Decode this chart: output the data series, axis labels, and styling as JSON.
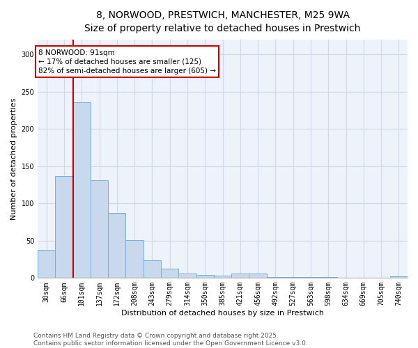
{
  "title_line1": "8, NORWOOD, PRESTWICH, MANCHESTER, M25 9WA",
  "title_line2": "Size of property relative to detached houses in Prestwich",
  "xlabel": "Distribution of detached houses by size in Prestwich",
  "ylabel": "Number of detached properties",
  "categories": [
    "30sqm",
    "66sqm",
    "101sqm",
    "137sqm",
    "172sqm",
    "208sqm",
    "243sqm",
    "279sqm",
    "314sqm",
    "350sqm",
    "385sqm",
    "421sqm",
    "456sqm",
    "492sqm",
    "527sqm",
    "563sqm",
    "598sqm",
    "634sqm",
    "669sqm",
    "705sqm",
    "740sqm"
  ],
  "values": [
    38,
    137,
    236,
    131,
    87,
    51,
    24,
    12,
    6,
    4,
    3,
    6,
    6,
    1,
    1,
    1,
    1,
    0,
    0,
    0,
    2
  ],
  "bar_color": "#c8d9ee",
  "bar_edge_color": "#7aadd4",
  "marker_line_color": "#cc0000",
  "annotation_text": "8 NORWOOD: 91sqm\n← 17% of detached houses are smaller (125)\n82% of semi-detached houses are larger (605) →",
  "annotation_box_color": "#cc0000",
  "ylim": [
    0,
    320
  ],
  "yticks": [
    0,
    50,
    100,
    150,
    200,
    250,
    300
  ],
  "grid_color": "#d0d8e8",
  "background_color": "#eef2fa",
  "footer_line1": "Contains HM Land Registry data © Crown copyright and database right 2025.",
  "footer_line2": "Contains public sector information licensed under the Open Government Licence v3.0.",
  "title_fontsize": 10,
  "subtitle_fontsize": 9,
  "axis_label_fontsize": 8,
  "tick_fontsize": 7,
  "annotation_fontsize": 7.5,
  "footer_fontsize": 6.5
}
